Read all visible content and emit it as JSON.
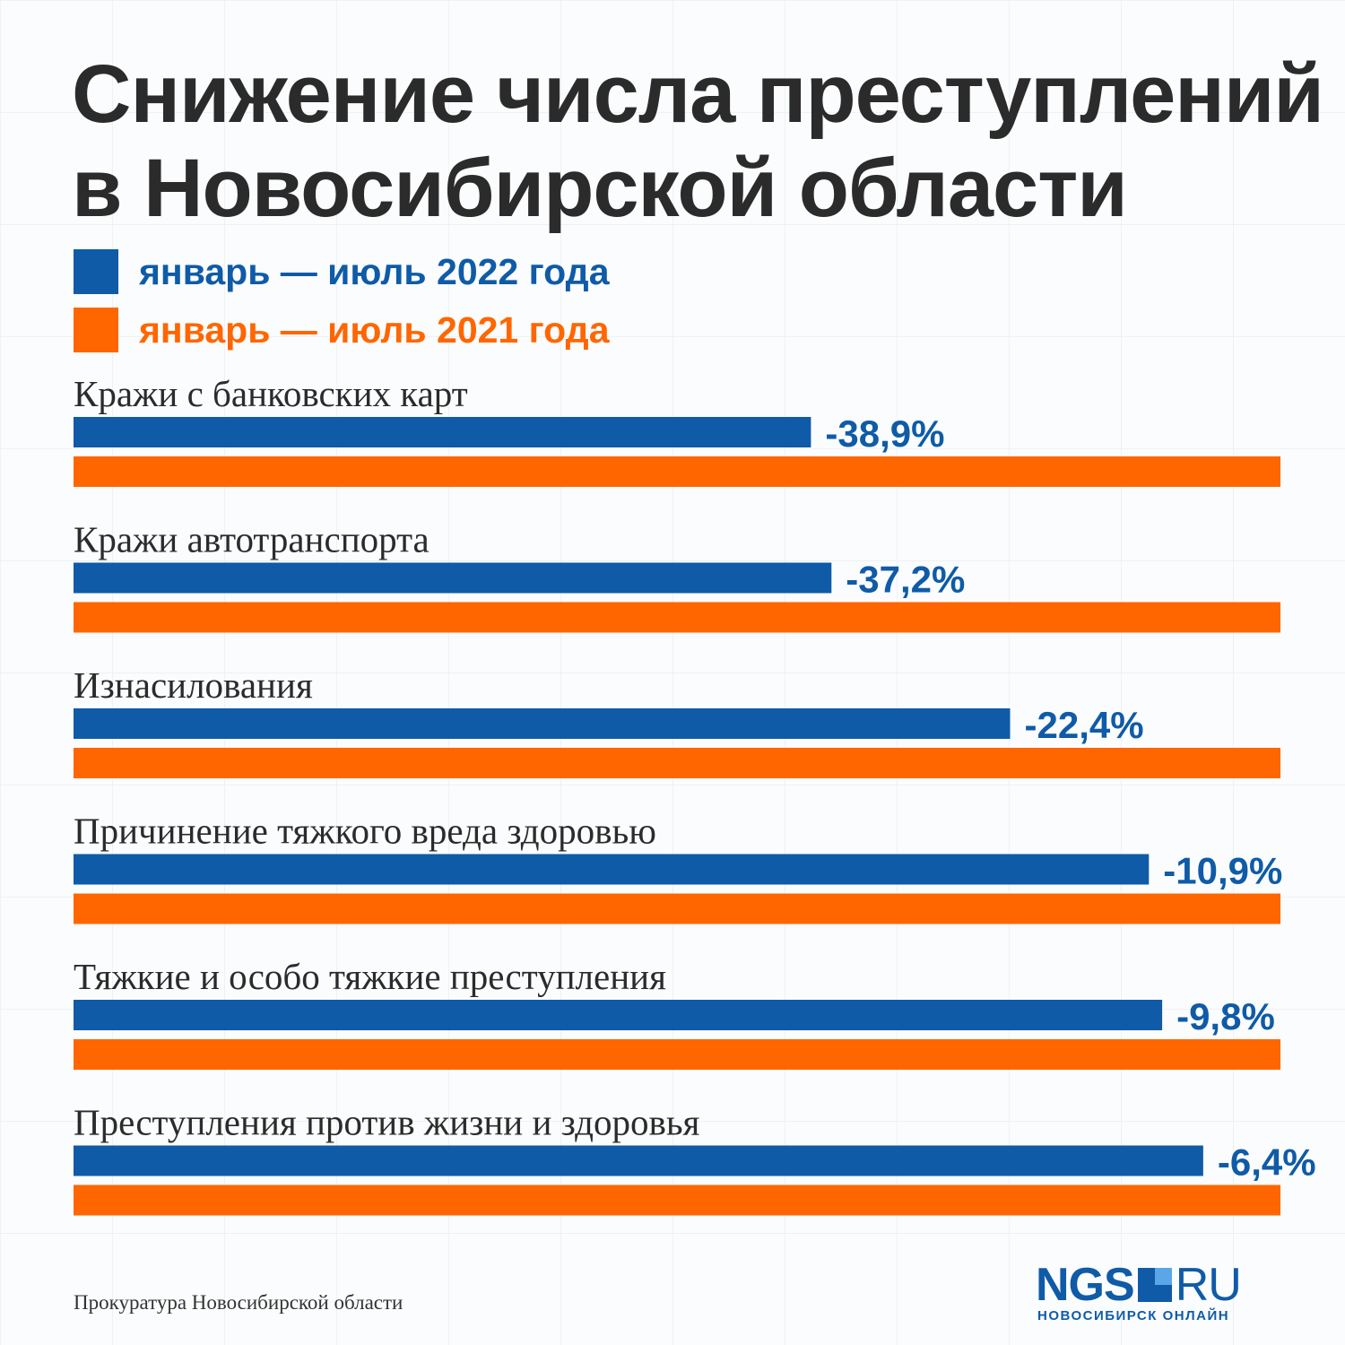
{
  "title": {
    "line1": "Снижение числа преступлений",
    "line2": "в Новосибирской области"
  },
  "legend": [
    {
      "label": "январь — июль 2022 года",
      "color": "#0f5ba7"
    },
    {
      "label": "январь — июль 2021 года",
      "color": "#ff6600"
    }
  ],
  "chart_data": {
    "type": "bar",
    "orientation": "horizontal",
    "categories": [
      "Кражи с банковских карт",
      "Кражи автотранспорта",
      "Изнасилования",
      "Причинение тяжкого вреда здоровью",
      "Тяжкие и особо тяжкие преступления",
      "Преступления против жизни и здоровья"
    ],
    "series": [
      {
        "name": "январь — июль 2022 года",
        "color": "#0f5ba7",
        "values": [
          61.1,
          62.8,
          77.6,
          89.1,
          90.2,
          93.6
        ]
      },
      {
        "name": "январь — июль 2021 года",
        "color": "#ff6600",
        "values": [
          100,
          100,
          100,
          100,
          100,
          100
        ]
      }
    ],
    "change_labels": [
      "-38,9%",
      "-37,2%",
      "-22,4%",
      "-10,9%",
      "-9,8%",
      "-6,4%"
    ],
    "xlim": [
      0,
      100
    ],
    "grid": false,
    "legend_position": "top-left"
  },
  "source": "Прокуратура Новосибирской области",
  "logo": {
    "main": "NGS",
    "domain": "RU",
    "subtitle": "НОВОСИБИРСК ОНЛАЙН"
  }
}
